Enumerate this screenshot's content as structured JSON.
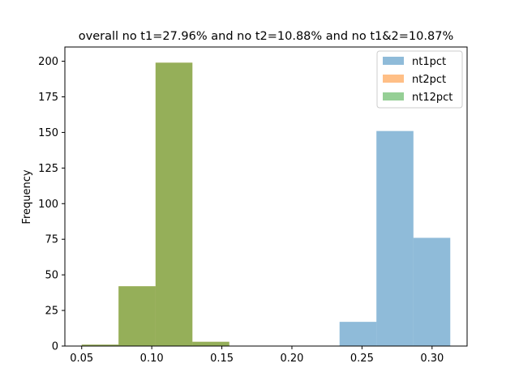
{
  "chart_data": {
    "type": "bar",
    "title": "overall no t1=27.96% and no t2=10.88% and no t1&2=10.87%",
    "xlabel": "",
    "ylabel": "Frequency",
    "xlim": [
      0.038,
      0.325
    ],
    "ylim": [
      0,
      210
    ],
    "x_ticks": [
      0.05,
      0.1,
      0.15,
      0.2,
      0.25,
      0.3
    ],
    "x_tick_labels": [
      "0.05",
      "0.10",
      "0.15",
      "0.20",
      "0.25",
      "0.30"
    ],
    "y_ticks": [
      0,
      25,
      50,
      75,
      100,
      125,
      150,
      175,
      200
    ],
    "y_tick_labels": [
      "0",
      "25",
      "50",
      "75",
      "100",
      "125",
      "150",
      "175",
      "200"
    ],
    "grid": false,
    "legend_position": "top-right",
    "series": [
      {
        "name": "nt1pct",
        "color": "#1f77b4",
        "alpha": 0.5,
        "bins": [
          {
            "x0": 0.234,
            "x1": 0.2603,
            "value": 17
          },
          {
            "x0": 0.2603,
            "x1": 0.2867,
            "value": 151
          },
          {
            "x0": 0.2867,
            "x1": 0.313,
            "value": 76
          }
        ]
      },
      {
        "name": "nt2pct",
        "color": "#ff7f0e",
        "alpha": 0.5,
        "bins": [
          {
            "x0": 0.05,
            "x1": 0.0763,
            "value": 1
          },
          {
            "x0": 0.0763,
            "x1": 0.1027,
            "value": 42
          },
          {
            "x0": 0.1027,
            "x1": 0.129,
            "value": 199
          },
          {
            "x0": 0.129,
            "x1": 0.1553,
            "value": 3
          }
        ]
      },
      {
        "name": "nt12pct",
        "color": "#2ca02c",
        "alpha": 0.5,
        "bins": [
          {
            "x0": 0.05,
            "x1": 0.0763,
            "value": 1
          },
          {
            "x0": 0.0763,
            "x1": 0.1027,
            "value": 42
          },
          {
            "x0": 0.1027,
            "x1": 0.129,
            "value": 199
          },
          {
            "x0": 0.129,
            "x1": 0.1553,
            "value": 3
          }
        ]
      }
    ]
  }
}
